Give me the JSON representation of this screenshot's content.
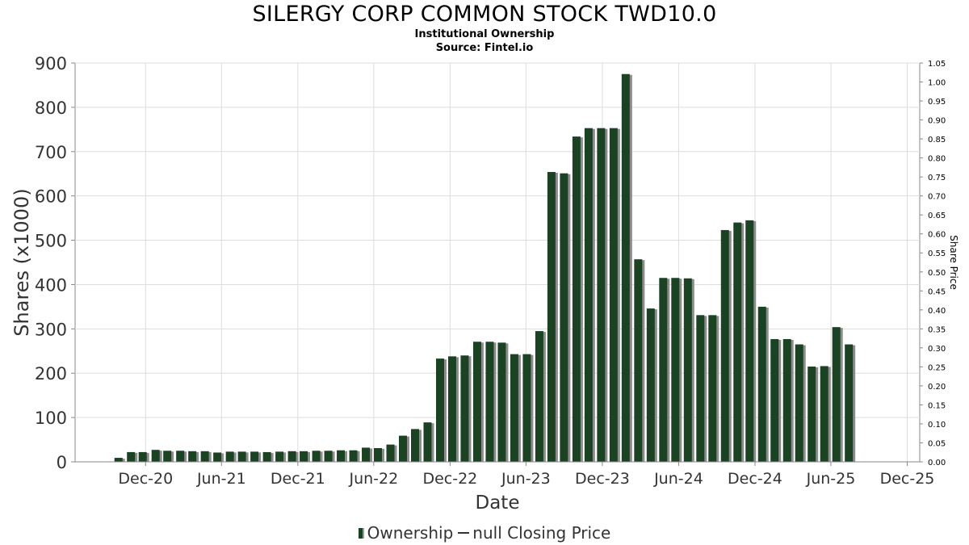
{
  "colors": {
    "bar": "#1a4223",
    "shadow": "#8c8c8c",
    "grid": "#dddddd",
    "axis": "#888888"
  },
  "legend": {
    "ownership": "Ownership",
    "closing": "null Closing Price"
  },
  "chart_data": {
    "type": "bar",
    "title": "SILERGY CORP COMMON STOCK TWD10.0",
    "subtitle": "Institutional Ownership",
    "source": "Source: Fintel.io",
    "xlabel": "Date",
    "ylabel": "Shares (x1000)",
    "y2label": "Share Price",
    "ylim": [
      0,
      900
    ],
    "yticks": [
      0,
      100,
      200,
      300,
      400,
      500,
      600,
      700,
      800,
      900
    ],
    "y2lim": [
      0,
      1.05
    ],
    "y2ticks": [
      "0.00",
      "0.05",
      "0.10",
      "0.15",
      "0.20",
      "0.25",
      "0.30",
      "0.35",
      "0.40",
      "0.45",
      "0.50",
      "0.55",
      "0.60",
      "0.65",
      "0.70",
      "0.75",
      "0.80",
      "0.85",
      "0.90",
      "0.95",
      "1.00",
      "1.05"
    ],
    "xlim": [
      "2020-06-15",
      "2025-12-31"
    ],
    "xticks": [
      {
        "date": "2020-12-01",
        "label": "Dec-20"
      },
      {
        "date": "2021-06-01",
        "label": "Jun-21"
      },
      {
        "date": "2021-12-01",
        "label": "Dec-21"
      },
      {
        "date": "2022-06-01",
        "label": "Jun-22"
      },
      {
        "date": "2022-12-01",
        "label": "Dec-22"
      },
      {
        "date": "2023-06-01",
        "label": "Jun-23"
      },
      {
        "date": "2023-12-01",
        "label": "Dec-23"
      },
      {
        "date": "2024-06-01",
        "label": "Jun-24"
      },
      {
        "date": "2024-12-01",
        "label": "Dec-24"
      },
      {
        "date": "2025-06-01",
        "label": "Jun-25"
      },
      {
        "date": "2025-12-01",
        "label": "Dec-25"
      }
    ],
    "grid": true,
    "legend_position": "bottom",
    "series": [
      {
        "name": "Ownership",
        "points": [
          {
            "x": "2020-09-27",
            "y": 9
          },
          {
            "x": "2020-10-27",
            "y": 22
          },
          {
            "x": "2020-11-24",
            "y": 22
          },
          {
            "x": "2020-12-25",
            "y": 27
          },
          {
            "x": "2021-01-22",
            "y": 25
          },
          {
            "x": "2021-02-22",
            "y": 25
          },
          {
            "x": "2021-03-23",
            "y": 24
          },
          {
            "x": "2021-04-22",
            "y": 24
          },
          {
            "x": "2021-05-22",
            "y": 21
          },
          {
            "x": "2021-06-21",
            "y": 23
          },
          {
            "x": "2021-07-20",
            "y": 23
          },
          {
            "x": "2021-08-19",
            "y": 23
          },
          {
            "x": "2021-09-18",
            "y": 22
          },
          {
            "x": "2021-10-18",
            "y": 23
          },
          {
            "x": "2021-11-17",
            "y": 24
          },
          {
            "x": "2021-12-15",
            "y": 24
          },
          {
            "x": "2022-01-14",
            "y": 25
          },
          {
            "x": "2022-02-12",
            "y": 25
          },
          {
            "x": "2022-03-14",
            "y": 26
          },
          {
            "x": "2022-04-13",
            "y": 26
          },
          {
            "x": "2022-05-13",
            "y": 32
          },
          {
            "x": "2022-06-11",
            "y": 31
          },
          {
            "x": "2022-07-11",
            "y": 39
          },
          {
            "x": "2022-08-10",
            "y": 59
          },
          {
            "x": "2022-09-08",
            "y": 74
          },
          {
            "x": "2022-10-08",
            "y": 89
          },
          {
            "x": "2022-11-07",
            "y": 233
          },
          {
            "x": "2022-12-06",
            "y": 238
          },
          {
            "x": "2023-01-05",
            "y": 240
          },
          {
            "x": "2023-02-04",
            "y": 271
          },
          {
            "x": "2023-03-06",
            "y": 271
          },
          {
            "x": "2023-04-04",
            "y": 269
          },
          {
            "x": "2023-05-04",
            "y": 243
          },
          {
            "x": "2023-06-03",
            "y": 243
          },
          {
            "x": "2023-07-03",
            "y": 295
          },
          {
            "x": "2023-08-01",
            "y": 654
          },
          {
            "x": "2023-08-31",
            "y": 651
          },
          {
            "x": "2023-09-30",
            "y": 734
          },
          {
            "x": "2023-10-29",
            "y": 753
          },
          {
            "x": "2023-11-28",
            "y": 753
          },
          {
            "x": "2023-12-28",
            "y": 753
          },
          {
            "x": "2024-01-26",
            "y": 875
          },
          {
            "x": "2024-02-25",
            "y": 457
          },
          {
            "x": "2024-03-26",
            "y": 346
          },
          {
            "x": "2024-04-25",
            "y": 415
          },
          {
            "x": "2024-05-24",
            "y": 415
          },
          {
            "x": "2024-06-23",
            "y": 414
          },
          {
            "x": "2024-07-23",
            "y": 331
          },
          {
            "x": "2024-08-21",
            "y": 331
          },
          {
            "x": "2024-09-20",
            "y": 523
          },
          {
            "x": "2024-10-20",
            "y": 540
          },
          {
            "x": "2024-11-18",
            "y": 545
          },
          {
            "x": "2024-12-18",
            "y": 350
          },
          {
            "x": "2025-01-17",
            "y": 277
          },
          {
            "x": "2025-02-16",
            "y": 277
          },
          {
            "x": "2025-03-17",
            "y": 265
          },
          {
            "x": "2025-04-16",
            "y": 215
          },
          {
            "x": "2025-05-16",
            "y": 216
          },
          {
            "x": "2025-06-14",
            "y": 304
          },
          {
            "x": "2025-07-14",
            "y": 265
          }
        ]
      }
    ]
  }
}
